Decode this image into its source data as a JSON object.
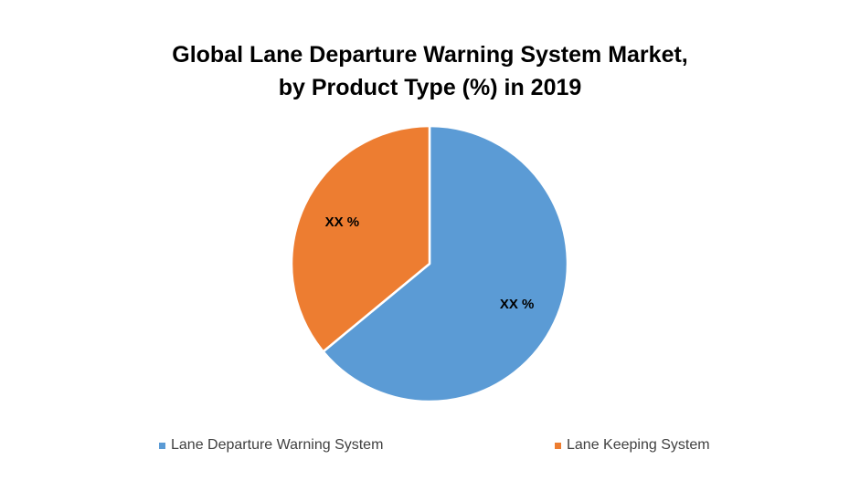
{
  "chart_data": {
    "type": "pie",
    "title_lines": [
      "Global Lane Departure Warning System Market,",
      "by Product Type (%) in 2019"
    ],
    "series": [
      {
        "name": "Lane Departure Warning System",
        "value": 64,
        "label": "XX %",
        "color": "#5B9BD5"
      },
      {
        "name": "Lane Keeping System",
        "value": 36,
        "label": "XX %",
        "color": "#ED7D31"
      }
    ],
    "start_angle_deg": 0,
    "direction": "clockwise",
    "legend_position": "bottom"
  }
}
